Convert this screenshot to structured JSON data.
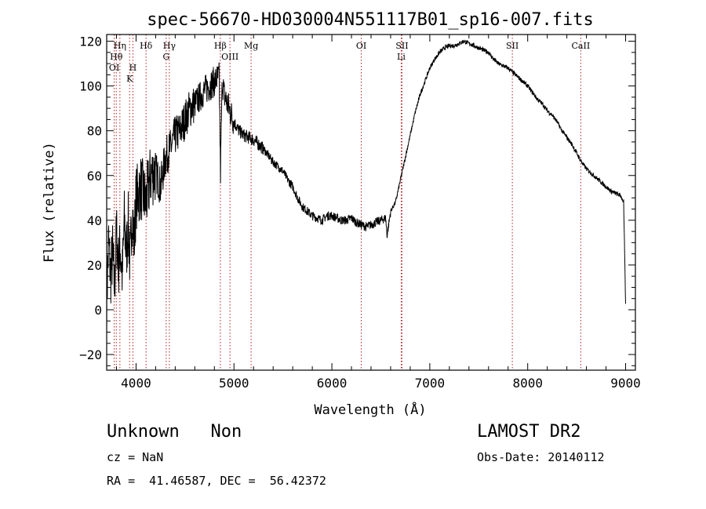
{
  "chart_data": {
    "type": "line",
    "title": "spec-56670-HD030004N551117B01_sp16-007.fits",
    "xlabel": "Wavelength (Å)",
    "ylabel": "Flux (relative)",
    "xlim": [
      3700,
      9100
    ],
    "ylim": [
      -27,
      123
    ],
    "xticks": [
      {
        "value": 4000,
        "label": "4000"
      },
      {
        "value": 5000,
        "label": "5000"
      },
      {
        "value": 6000,
        "label": "6000"
      },
      {
        "value": 7000,
        "label": "7000"
      },
      {
        "value": 8000,
        "label": "8000"
      },
      {
        "value": 9000,
        "label": "9000"
      }
    ],
    "yticks": [
      {
        "value": -20,
        "label": "−20"
      },
      {
        "value": 0,
        "label": "0"
      },
      {
        "value": 20,
        "label": "20"
      },
      {
        "value": 40,
        "label": "40"
      },
      {
        "value": 60,
        "label": "60"
      },
      {
        "value": 80,
        "label": "80"
      },
      {
        "value": 100,
        "label": "100"
      },
      {
        "value": 120,
        "label": "120"
      }
    ],
    "grid": false,
    "series": [
      {
        "x": [
          3700,
          3720,
          3740,
          3760,
          3780,
          3800,
          3820,
          3840,
          3860,
          3880,
          3900,
          3920,
          3940,
          3960,
          3980,
          4000,
          4050,
          4100,
          4150,
          4200,
          4250,
          4300,
          4350,
          4400,
          4450,
          4500,
          4550,
          4600,
          4650,
          4700,
          4750,
          4800,
          4850,
          4862,
          4880,
          4900,
          4950,
          5000,
          5050,
          5100,
          5150,
          5200,
          5250,
          5300,
          5350,
          5400,
          5450,
          5500,
          5550,
          5600,
          5650,
          5700,
          5750,
          5800,
          5850,
          5900,
          5950,
          6000,
          6050,
          6100,
          6150,
          6200,
          6250,
          6300,
          6350,
          6400,
          6450,
          6500,
          6550,
          6563,
          6600,
          6650,
          6700,
          6750,
          6800,
          6850,
          6900,
          6950,
          7000,
          7050,
          7100,
          7150,
          7200,
          7250,
          7300,
          7350,
          7400,
          7450,
          7500,
          7550,
          7600,
          7650,
          7700,
          7750,
          7800,
          7850,
          7900,
          7950,
          8000,
          8050,
          8100,
          8150,
          8200,
          8250,
          8300,
          8350,
          8400,
          8450,
          8500,
          8550,
          8600,
          8650,
          8700,
          8750,
          8800,
          8850,
          8900,
          8950,
          8980,
          9000
        ],
        "y": [
          5,
          30,
          15,
          25,
          10,
          35,
          20,
          28,
          15,
          40,
          25,
          38,
          20,
          45,
          30,
          50,
          55,
          48,
          60,
          62,
          55,
          68,
          72,
          78,
          80,
          85,
          90,
          92,
          95,
          98,
          100,
          102,
          104,
          60,
          103,
          96,
          90,
          84,
          80,
          78,
          77,
          76,
          74,
          72,
          69,
          66,
          64,
          62,
          58,
          55,
          50,
          46,
          44,
          42,
          41,
          40,
          42,
          42,
          41,
          40,
          40,
          41,
          39,
          38,
          37,
          38,
          39,
          40,
          41,
          33,
          44,
          48,
          58,
          68,
          78,
          88,
          96,
          102,
          108,
          112,
          115,
          117,
          118,
          118,
          119,
          120,
          119,
          118,
          117,
          116,
          115,
          112,
          110,
          109,
          108,
          106,
          104,
          102,
          100,
          97,
          94,
          92,
          89,
          87,
          84,
          80,
          77,
          74,
          70,
          66,
          63,
          61,
          59,
          57,
          55,
          53,
          52,
          51,
          48,
          2
        ]
      }
    ],
    "lines": [
      {
        "label": "Hη",
        "x": 3835
      },
      {
        "label": "Hθ",
        "x": 3798
      },
      {
        "label": "OI",
        "x": 3777
      },
      {
        "label": "Hδ",
        "x": 4102
      },
      {
        "label": "H",
        "x": 3968
      },
      {
        "label": "K",
        "x": 3934
      },
      {
        "label": "Hγ",
        "x": 4340
      },
      {
        "label": "G",
        "x": 4308
      },
      {
        "label": "Hβ",
        "x": 4861
      },
      {
        "label": "OIII",
        "x": 4959
      },
      {
        "label": "Mg",
        "x": 5175
      },
      {
        "label": "OI",
        "x": 6300
      },
      {
        "label": "SII",
        "x": 6716
      },
      {
        "label": "Li",
        "x": 6708
      },
      {
        "label": "SII",
        "x": 7843
      },
      {
        "label": "CaII",
        "x": 8542
      }
    ]
  },
  "info": {
    "classification": "Unknown   Non",
    "survey": "LAMOST DR2",
    "redshift": "cz = NaN",
    "obs_date": "Obs-Date: 20140112",
    "coords": "RA =  41.46587, DEC =  56.42372"
  }
}
